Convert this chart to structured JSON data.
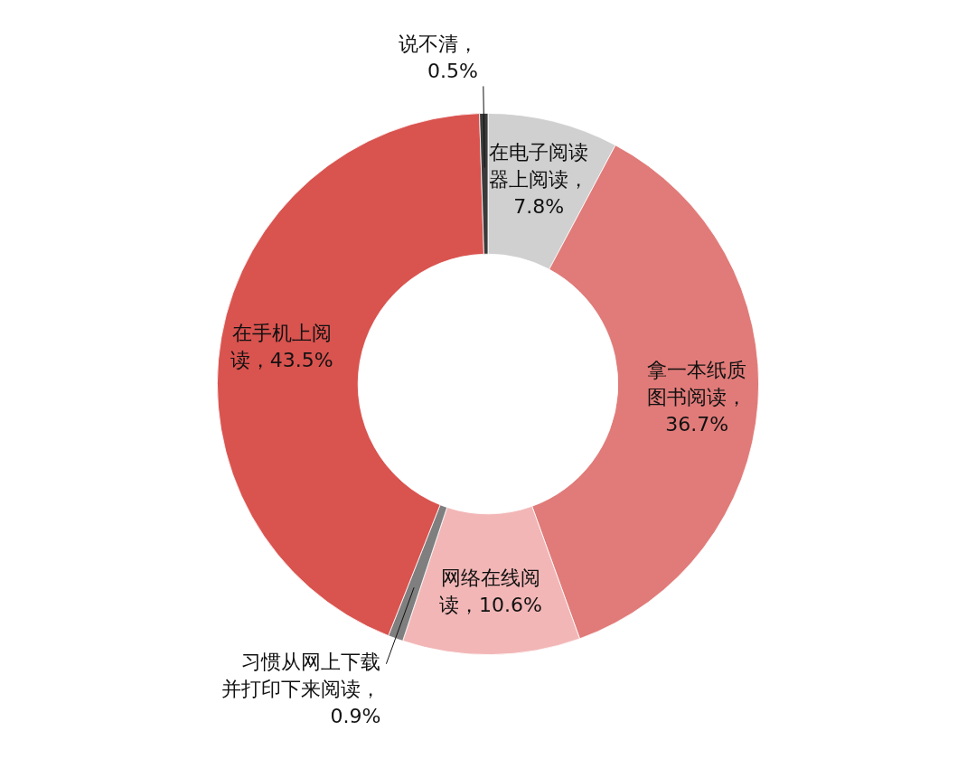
{
  "chart_data": {
    "type": "donut",
    "categories": [
      "在电子阅读器上阅读",
      "拿一本纸质图书阅读",
      "网络在线阅读",
      "习惯从网上下载并打印下来阅读",
      "在手机上阅读",
      "说不清"
    ],
    "values": [
      7.8,
      36.7,
      10.6,
      0.9,
      43.5,
      0.5
    ],
    "colors": [
      "#d0d0d0",
      "#e07b79",
      "#f2b6b6",
      "#7f7f7f",
      "#d9534f",
      "#3a3a3a"
    ],
    "value_labels": [
      "，7.8%",
      "，36.7%",
      "，10.6%",
      "，0.9%",
      "，43.5%",
      "，0.5%"
    ],
    "legend": false
  }
}
